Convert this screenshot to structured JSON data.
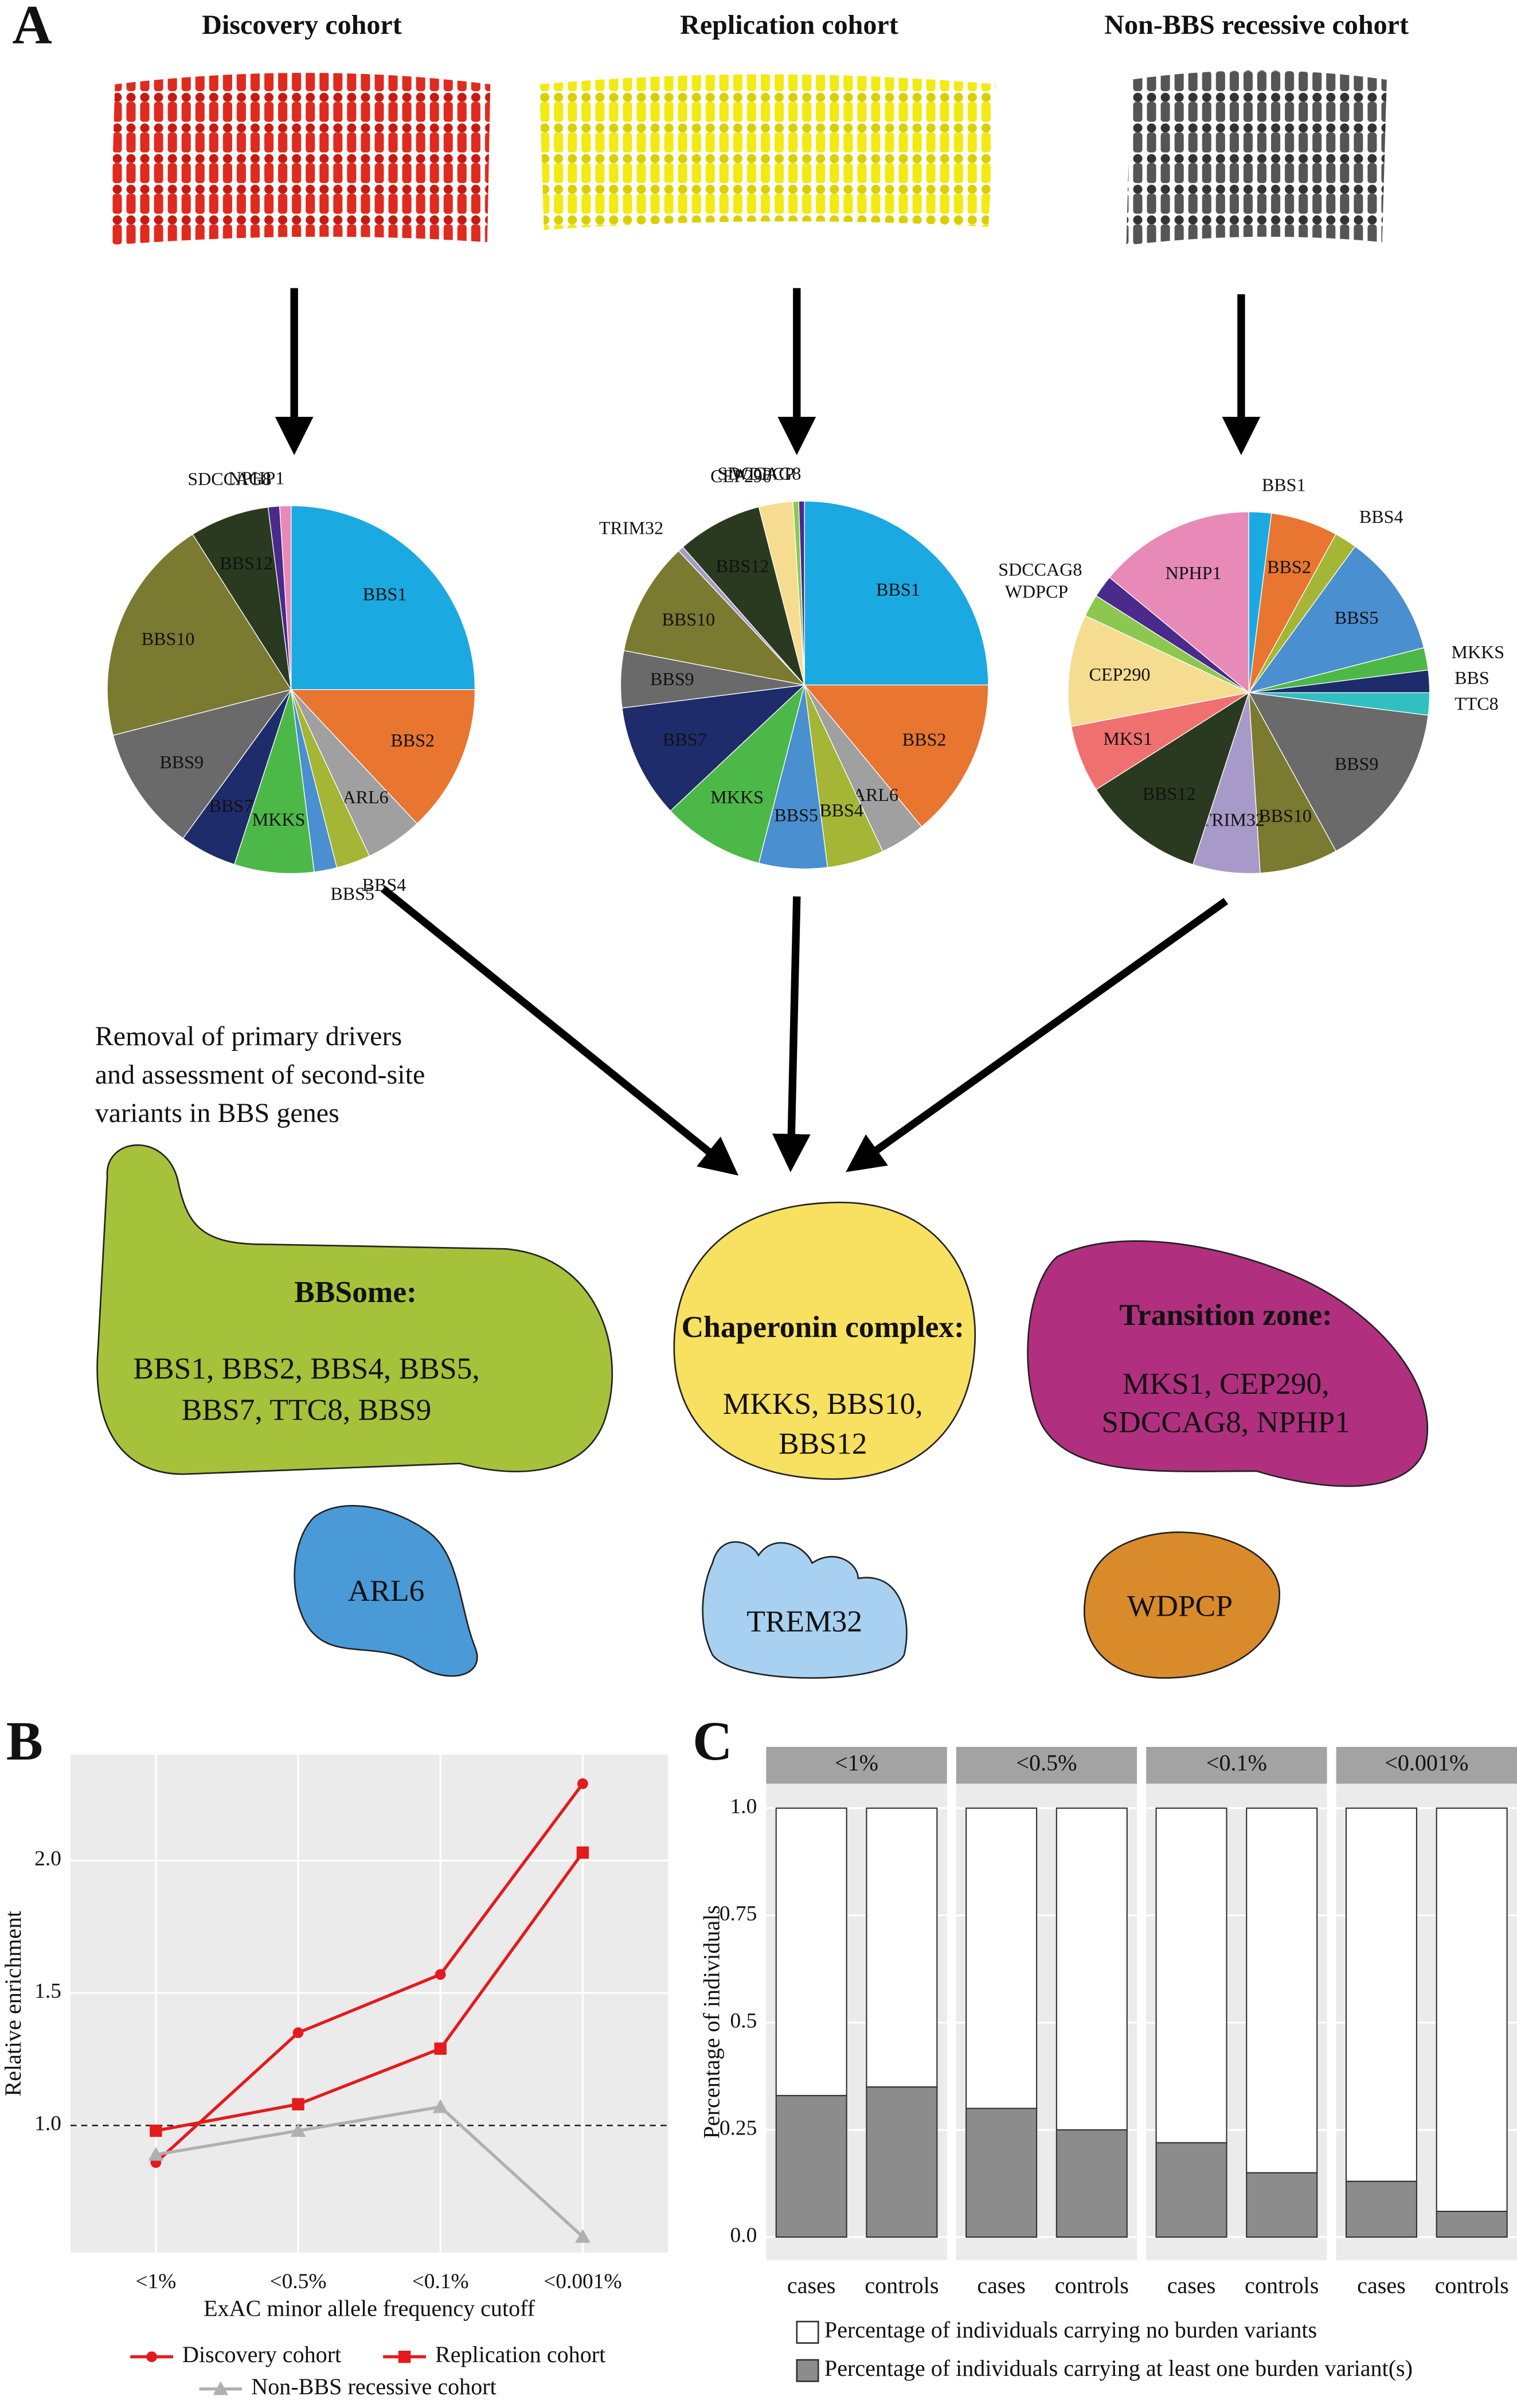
{
  "panel_labels": [
    "A",
    "B",
    "C"
  ],
  "panel_a": {
    "note_lines": [
      "Removal of primary drivers",
      "and assessment of second-site",
      "variants in BBS genes"
    ],
    "groups": [
      {
        "title": "BBSome:",
        "members": [
          "BBS1, BBS2, BBS4, BBS5,",
          "BBS7, TTC8, BBS9"
        ]
      },
      {
        "title": "Chaperonin complex:",
        "members": [
          "MKKS, BBS10,",
          "BBS12"
        ]
      },
      {
        "title": "Transition zone:",
        "members": [
          "MKS1, CEP290,",
          "SDCCAG8, NPHP1"
        ]
      }
    ],
    "singles": [
      "ARL6",
      "TREM32",
      "WDPCP"
    ]
  },
  "chart_data": [
    {
      "type": "pie",
      "title": "Discovery cohort",
      "categories": [
        "BBS1",
        "BBS2",
        "ARL6",
        "BBS4",
        "BBS5",
        "MKKS",
        "BBS7",
        "BBS9",
        "BBS10",
        "BBS12",
        "SDCCAG8",
        "NPHP1"
      ],
      "values": [
        25,
        13,
        5,
        3,
        2,
        7,
        5,
        11,
        20,
        7,
        1,
        1
      ],
      "colors": [
        "#1ba9e1",
        "#e87530",
        "#a0a0a0",
        "#a5b535",
        "#4a8fd0",
        "#4cb848",
        "#1e2c6b",
        "#6a6a6a",
        "#7a7a30",
        "#2a3a20",
        "#4a2a8a",
        "#e88ab8"
      ]
    },
    {
      "type": "pie",
      "title": "Replication cohort",
      "categories": [
        "BBS1",
        "BBS2",
        "ARL6",
        "BBS4",
        "BBS5",
        "MKKS",
        "BBS7",
        "BBS9",
        "BBS10",
        "TRIM32",
        "BBS12",
        "CEP290",
        "WDPCP",
        "SDCCAG8"
      ],
      "values": [
        25,
        14,
        4,
        5,
        6,
        9,
        10,
        5,
        10,
        0.5,
        7.5,
        3,
        0.5,
        0.5
      ],
      "colors": [
        "#1ba9e1",
        "#e87530",
        "#a0a0a0",
        "#a5b535",
        "#4a8fd0",
        "#4cb848",
        "#1e2c6b",
        "#6a6a6a",
        "#7a7a30",
        "#a89ac8",
        "#2a3a20",
        "#f5dc90",
        "#8cc850",
        "#4a2a8a"
      ]
    },
    {
      "type": "pie",
      "title": "Non-BBS recessive cohort",
      "categories": [
        "BBS1",
        "BBS2",
        "BBS4",
        "BBS5",
        "MKKS",
        "BBS",
        "TTC8",
        "BBS9",
        "BBS10",
        "TRIM32",
        "BBS12",
        "MKS1",
        "CEP290",
        "WDPCP",
        "SDCCAG8",
        "NPHP1"
      ],
      "values": [
        2,
        6,
        2,
        11,
        2,
        2,
        2,
        15,
        7,
        6,
        11,
        6,
        10,
        2,
        2,
        14
      ],
      "colors": [
        "#1ba9e1",
        "#e87530",
        "#a5b535",
        "#4a8fd0",
        "#4cb848",
        "#1e2c6b",
        "#30c0c0",
        "#6a6a6a",
        "#7a7a30",
        "#a89ac8",
        "#2a3a20",
        "#f07070",
        "#f5dc90",
        "#8cc850",
        "#4a2a8a",
        "#e88ab8"
      ]
    },
    {
      "type": "line",
      "x_label": "ExAC minor allele frequency cutoff",
      "y_label": "Relative enrichment",
      "categories": [
        "<1%",
        "<0.5%",
        "<0.1%",
        "<0.001%"
      ],
      "ylim": [
        0.52,
        2.4
      ],
      "yticks": [
        {
          "value": 1,
          "label": "1.0"
        },
        1.5,
        {
          "value": 2,
          "label": "2.0"
        }
      ],
      "hline": 1,
      "grid": true,
      "series": [
        {
          "name": "Discovery cohort",
          "color": "#e41a1c",
          "marker": "circle",
          "values": [
            0.86,
            1.35,
            1.57,
            2.29
          ]
        },
        {
          "name": "Replication cohort",
          "color": "#e41a1c",
          "marker": "square",
          "values": [
            0.98,
            1.08,
            1.29,
            2.03
          ]
        },
        {
          "name": "Non-BBS recessive cohort",
          "color": "#b0b0b0",
          "marker": "triangle",
          "values": [
            0.89,
            0.98,
            1.07,
            0.58
          ]
        }
      ]
    },
    {
      "type": "bar",
      "stacked": true,
      "y_label": "Percentage of individuals",
      "facets": [
        "<1%",
        "<0.5%",
        "<0.1%",
        "<0.001%"
      ],
      "categories": [
        "cases",
        "controls"
      ],
      "ylim": [
        -0.054,
        1.057
      ],
      "yticks": [
        {
          "value": 0,
          "label": "0.0"
        },
        0.25,
        0.5,
        0.75,
        {
          "value": 1,
          "label": "1.0"
        }
      ],
      "grid": true,
      "series": [
        {
          "name": "Percentage of individuals carrying at least one burden variant(s)",
          "color": "#8c8c8c",
          "values": [
            [
              0.33,
              0.35
            ],
            [
              0.3,
              0.25
            ],
            [
              0.22,
              0.15
            ],
            [
              0.13,
              0.06
            ]
          ]
        },
        {
          "name": "Percentage of individuals carrying no burden variants",
          "color": "#ffffff",
          "values": [
            [
              0.67,
              0.65
            ],
            [
              0.7,
              0.75
            ],
            [
              0.78,
              0.85
            ],
            [
              0.87,
              0.94
            ]
          ]
        }
      ]
    }
  ]
}
